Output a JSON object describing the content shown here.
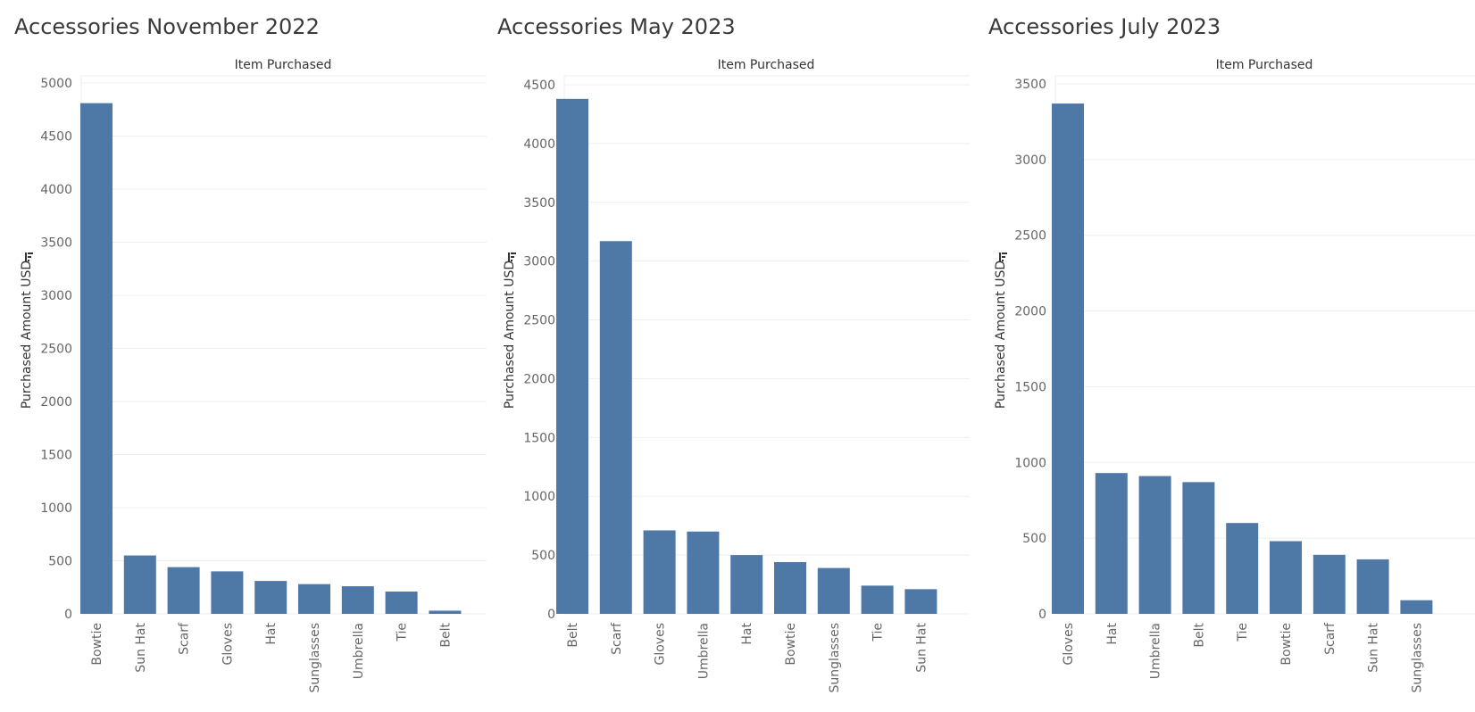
{
  "chart_data": [
    {
      "type": "bar",
      "title": "Accessories November 2022",
      "xlabel": "Item Purchased",
      "ylabel": "Purchased Amount USD",
      "ylim": [
        0,
        5000
      ],
      "yticks": [
        0,
        500,
        1000,
        1500,
        2000,
        2500,
        3000,
        3500,
        4000,
        4500,
        5000
      ],
      "categories": [
        "Bowtie",
        "Sun Hat",
        "Scarf",
        "Gloves",
        "Hat",
        "Sunglasses",
        "Umbrella",
        "Tie",
        "Belt"
      ],
      "values": [
        4810,
        550,
        440,
        400,
        310,
        280,
        260,
        210,
        30
      ],
      "color": "#4e79a7",
      "grid": true
    },
    {
      "type": "bar",
      "title": "Accessories May 2023",
      "xlabel": "Item Purchased",
      "ylabel": "Purchased Amount USD",
      "ylim": [
        0,
        4500
      ],
      "yticks": [
        0,
        500,
        1000,
        1500,
        2000,
        2500,
        3000,
        3500,
        4000,
        4500
      ],
      "categories": [
        "Belt",
        "Scarf",
        "Gloves",
        "Umbrella",
        "Hat",
        "Bowtie",
        "Sunglasses",
        "Tie",
        "Sun Hat"
      ],
      "values": [
        4380,
        3170,
        710,
        700,
        500,
        440,
        390,
        240,
        210
      ],
      "color": "#4e79a7",
      "grid": true
    },
    {
      "type": "bar",
      "title": "Accessories July 2023",
      "xlabel": "Item Purchased",
      "ylabel": "Purchased Amount USD",
      "ylim": [
        0,
        3500
      ],
      "yticks": [
        0,
        500,
        1000,
        1500,
        2000,
        2500,
        3000,
        3500
      ],
      "categories": [
        "Gloves",
        "Hat",
        "Umbrella",
        "Belt",
        "Tie",
        "Bowtie",
        "Scarf",
        "Sun Hat",
        "Sunglasses"
      ],
      "values": [
        3370,
        930,
        910,
        870,
        600,
        480,
        390,
        360,
        90
      ],
      "color": "#4e79a7",
      "grid": true
    }
  ]
}
